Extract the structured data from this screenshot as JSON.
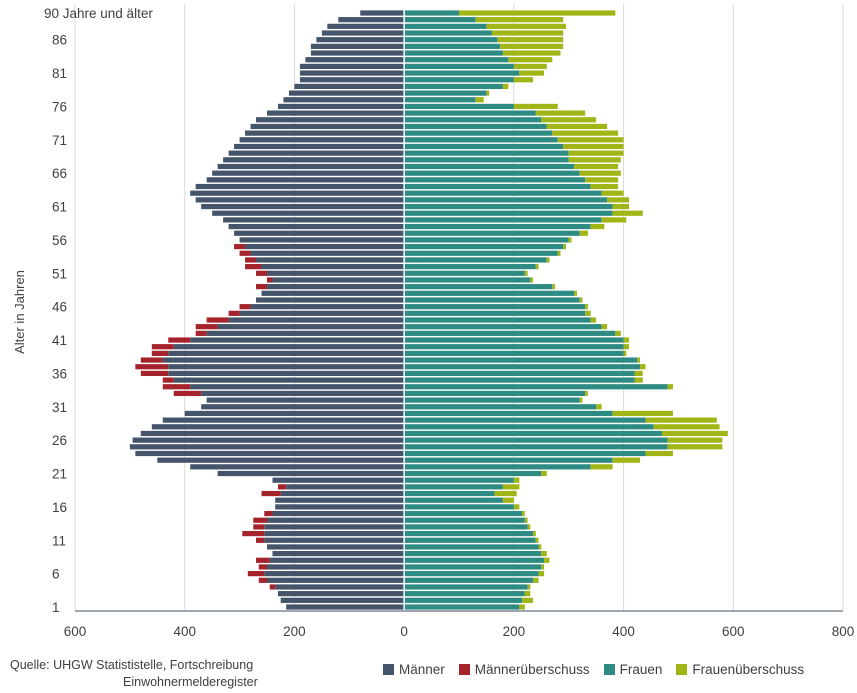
{
  "chart_data": {
    "type": "bar",
    "orientation": "population-pyramid",
    "ylabel": "Alter in Jahren",
    "x_ticks": [
      "600",
      "400",
      "200",
      "0",
      "200",
      "400",
      "600",
      "800"
    ],
    "x_tick_values": [
      -600,
      -400,
      -200,
      0,
      200,
      400,
      600,
      800
    ],
    "xlim": [
      -600,
      800
    ],
    "y_tick_labels": [
      "1",
      "6",
      "11",
      "16",
      "21",
      "26",
      "31",
      "36",
      "41",
      "46",
      "51",
      "56",
      "61",
      "66",
      "71",
      "76",
      "81",
      "86",
      "90 Jahre und älter"
    ],
    "y_tick_ages": [
      1,
      6,
      11,
      16,
      21,
      26,
      31,
      36,
      41,
      46,
      51,
      56,
      61,
      66,
      71,
      76,
      81,
      86,
      90
    ],
    "grid": "vertical",
    "legend_position": "bottom",
    "ages": [
      1,
      2,
      3,
      4,
      5,
      6,
      7,
      8,
      9,
      10,
      11,
      12,
      13,
      14,
      15,
      16,
      17,
      18,
      19,
      20,
      21,
      22,
      23,
      24,
      25,
      26,
      27,
      28,
      29,
      30,
      31,
      32,
      33,
      34,
      35,
      36,
      37,
      38,
      39,
      40,
      41,
      42,
      43,
      44,
      45,
      46,
      47,
      48,
      49,
      50,
      51,
      52,
      53,
      54,
      55,
      56,
      57,
      58,
      59,
      60,
      61,
      62,
      63,
      64,
      65,
      66,
      67,
      68,
      69,
      70,
      71,
      72,
      73,
      74,
      75,
      76,
      77,
      78,
      79,
      80,
      81,
      82,
      83,
      84,
      85,
      86,
      87,
      88,
      89,
      90
    ],
    "series": [
      {
        "name": "Männer",
        "color": "#44546A",
        "values": [
          215,
          225,
          230,
          235,
          250,
          255,
          250,
          245,
          240,
          250,
          255,
          255,
          255,
          250,
          240,
          235,
          235,
          225,
          215,
          240,
          340,
          390,
          450,
          490,
          500,
          495,
          480,
          460,
          440,
          400,
          370,
          360,
          370,
          390,
          420,
          430,
          430,
          440,
          430,
          420,
          390,
          360,
          340,
          320,
          300,
          280,
          270,
          260,
          250,
          240,
          250,
          260,
          270,
          280,
          290,
          300,
          310,
          320,
          330,
          350,
          370,
          380,
          390,
          380,
          360,
          350,
          340,
          330,
          320,
          310,
          300,
          290,
          280,
          270,
          250,
          230,
          220,
          210,
          200,
          190,
          190,
          190,
          180,
          170,
          170,
          160,
          150,
          140,
          120,
          80
        ]
      },
      {
        "name": "Männerüberschuss",
        "color": "#A5232B",
        "values": [
          0,
          0,
          0,
          10,
          15,
          30,
          15,
          25,
          0,
          0,
          15,
          40,
          20,
          25,
          15,
          0,
          0,
          35,
          15,
          0,
          0,
          0,
          0,
          0,
          0,
          0,
          0,
          0,
          0,
          0,
          0,
          0,
          50,
          50,
          20,
          50,
          60,
          40,
          30,
          40,
          40,
          20,
          40,
          40,
          20,
          20,
          0,
          0,
          20,
          10,
          20,
          30,
          20,
          20,
          20,
          0,
          0,
          0,
          0,
          0,
          0,
          0,
          0,
          0,
          0,
          0,
          0,
          0,
          0,
          0,
          0,
          0,
          0,
          0,
          0,
          0,
          0,
          0,
          0,
          0,
          0,
          0,
          0,
          0,
          0,
          0,
          0,
          0,
          0,
          0
        ]
      },
      {
        "name": "Frauen",
        "color": "#2E8B84",
        "values": [
          210,
          215,
          220,
          225,
          235,
          245,
          250,
          255,
          250,
          245,
          240,
          235,
          225,
          220,
          215,
          200,
          180,
          165,
          180,
          200,
          250,
          340,
          380,
          440,
          480,
          480,
          470,
          455,
          440,
          380,
          350,
          320,
          330,
          480,
          420,
          420,
          430,
          425,
          400,
          400,
          400,
          385,
          360,
          340,
          330,
          330,
          320,
          310,
          270,
          230,
          220,
          240,
          260,
          280,
          290,
          300,
          320,
          340,
          360,
          380,
          380,
          370,
          360,
          340,
          330,
          320,
          310,
          300,
          300,
          290,
          280,
          270,
          260,
          250,
          240,
          200,
          130,
          150,
          180,
          200,
          210,
          200,
          190,
          180,
          175,
          170,
          160,
          150,
          130,
          100
        ]
      },
      {
        "name": "Frauenüberschuss",
        "color": "#A2B516",
        "values": [
          10,
          20,
          10,
          5,
          10,
          10,
          5,
          10,
          10,
          5,
          5,
          5,
          5,
          5,
          5,
          10,
          20,
          40,
          30,
          10,
          10,
          40,
          50,
          50,
          100,
          100,
          120,
          120,
          130,
          110,
          10,
          5,
          5,
          10,
          15,
          15,
          10,
          5,
          5,
          10,
          10,
          10,
          10,
          10,
          10,
          5,
          5,
          5,
          5,
          5,
          5,
          5,
          5,
          5,
          5,
          5,
          15,
          25,
          45,
          55,
          30,
          40,
          40,
          50,
          60,
          75,
          80,
          95,
          100,
          110,
          120,
          120,
          110,
          100,
          90,
          80,
          15,
          5,
          10,
          35,
          45,
          60,
          80,
          105,
          115,
          120,
          130,
          145,
          160,
          285
        ]
      }
    ]
  },
  "source": {
    "line1": "Quelle: UHGW Statististelle, Fortschreibung",
    "line2": "Einwohnermelderegister"
  }
}
